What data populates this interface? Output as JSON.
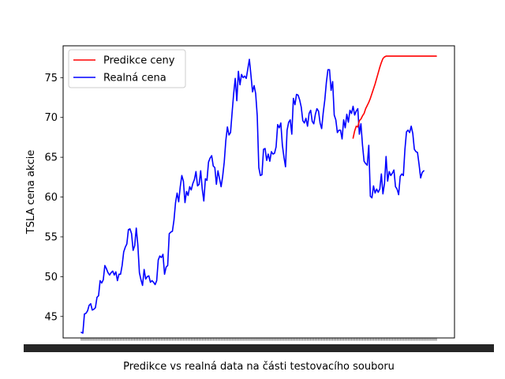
{
  "chart_data": {
    "type": "line",
    "title": "",
    "xlabel": "Predikce vs realná data na části testovacího souboru",
    "ylabel": "TSLA cena akcie",
    "ylim": [
      42.3,
      79.0
    ],
    "yticks": [
      45,
      50,
      55,
      60,
      65,
      70,
      75
    ],
    "xtick_labels_legible": false,
    "grid": false,
    "legend": "top-left",
    "n_points": 227,
    "prediction_start_index": 173,
    "series": [
      {
        "name": "Realná cena",
        "color": "#0000ff",
        "values": [
          43.0,
          42.9,
          45.3,
          45.4,
          45.7,
          46.4,
          46.6,
          45.8,
          45.9,
          46.1,
          47.4,
          47.6,
          49.5,
          49.2,
          49.6,
          51.4,
          51.0,
          50.5,
          50.2,
          50.5,
          50.7,
          50.2,
          50.6,
          49.5,
          50.3,
          50.3,
          51.4,
          53.1,
          53.7,
          54.1,
          55.9,
          56.0,
          55.4,
          53.3,
          53.9,
          56.1,
          54.0,
          50.5,
          49.6,
          48.9,
          50.9,
          49.7,
          50.0,
          50.1,
          49.3,
          49.5,
          49.3,
          49.0,
          49.5,
          52.1,
          52.6,
          52.4,
          52.8,
          50.3,
          51.2,
          51.4,
          55.4,
          55.6,
          55.7,
          57.1,
          59.3,
          60.5,
          59.4,
          61.3,
          62.7,
          62.0,
          59.3,
          60.7,
          60.2,
          61.3,
          60.9,
          61.7,
          62.2,
          63.2,
          61.4,
          61.6,
          63.3,
          61.0,
          59.5,
          62.3,
          62.1,
          64.4,
          64.9,
          65.2,
          63.9,
          63.7,
          61.6,
          63.3,
          62.3,
          61.3,
          62.6,
          64.4,
          67.1,
          68.8,
          67.8,
          68.1,
          70.6,
          73.0,
          74.9,
          72.1,
          75.8,
          74.1,
          75.4,
          75.0,
          75.2,
          74.9,
          76.1,
          77.3,
          75.3,
          73.2,
          74.0,
          73.0,
          70.2,
          63.7,
          62.7,
          62.8,
          66.0,
          66.1,
          64.6,
          65.4,
          64.5,
          65.7,
          65.4,
          65.5,
          66.3,
          69.1,
          68.7,
          69.3,
          66.5,
          65.0,
          63.8,
          68.4,
          69.4,
          69.7,
          67.9,
          72.4,
          71.6,
          72.9,
          72.8,
          72.2,
          71.3,
          69.6,
          69.3,
          69.9,
          68.9,
          70.5,
          70.9,
          69.5,
          69.2,
          70.4,
          71.1,
          70.8,
          69.3,
          68.6,
          70.6,
          72.2,
          74.4,
          76.0,
          76.0,
          73.4,
          74.5,
          70.3,
          69.7,
          68.1,
          68.4,
          68.4,
          67.3,
          69.7,
          68.7,
          70.4,
          69.4,
          70.9,
          70.5,
          71.4,
          70.3,
          70.8,
          71.1,
          67.9,
          69.2,
          66.5,
          64.5,
          64.2,
          64.0,
          66.5,
          60.1,
          59.9,
          61.4,
          60.5,
          61.0,
          60.6,
          61.0,
          62.9,
          60.4,
          61.7,
          65.1,
          62.0,
          63.2,
          62.7,
          63.0,
          63.4,
          61.3,
          61.0,
          60.3,
          62.6,
          62.9,
          62.7,
          66.0,
          68.2,
          68.4,
          68.1,
          68.9,
          68.0,
          66.0,
          65.7,
          65.6,
          64.1,
          62.4,
          63.1,
          63.3
        ]
      },
      {
        "name": "Predikce ceny",
        "color": "#ff0000",
        "values": [
          67.4,
          68.3,
          68.9,
          68.8,
          69.6,
          69.8,
          70.2,
          70.5,
          71.1,
          71.5,
          71.9,
          72.4,
          73.0,
          73.6,
          74.2,
          74.9,
          75.6,
          76.3,
          76.9,
          77.4,
          77.6,
          77.7,
          77.7,
          77.7,
          77.7,
          77.7,
          77.7,
          77.7,
          77.7,
          77.7,
          77.7,
          77.7,
          77.7,
          77.7,
          77.7,
          77.7,
          77.7,
          77.7,
          77.7,
          77.7,
          77.7,
          77.7,
          77.7,
          77.7,
          77.7,
          77.7,
          77.7,
          77.7,
          77.7,
          77.7,
          77.7,
          77.7,
          77.7,
          77.7
        ]
      }
    ]
  },
  "legend": {
    "items": [
      {
        "label": "Predikce ceny",
        "color": "#ff0000"
      },
      {
        "label": "Realná cena",
        "color": "#0000ff"
      }
    ]
  }
}
